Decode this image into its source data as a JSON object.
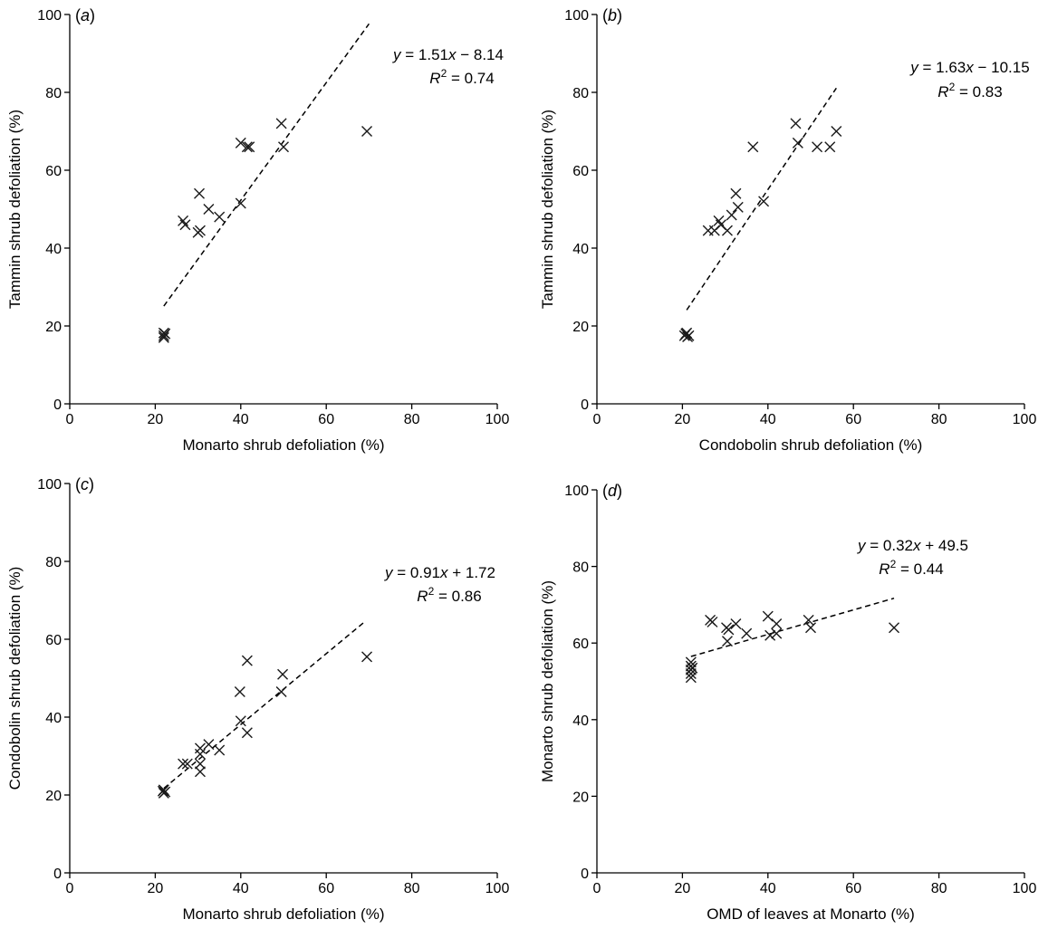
{
  "chart_data": [
    {
      "type": "scatter",
      "panel_label": "a",
      "xlabel": "Monarto shrub defoliation (%)",
      "ylabel": "Tammin shrub defoliation (%)",
      "xlim": [
        0,
        100
      ],
      "ylim": [
        0,
        100
      ],
      "xticks": [
        0,
        20,
        40,
        60,
        80,
        100
      ],
      "yticks": [
        0,
        20,
        40,
        60,
        80,
        100
      ],
      "equation": {
        "prefix": "y = 1.51",
        "var": "x",
        "rest": " − 8.14",
        "r2": "= 0.74"
      },
      "trendline": {
        "x": [
          22,
          70
        ],
        "y": [
          25.1,
          97.6
        ]
      },
      "points": [
        {
          "x": 22,
          "y": 17.5
        },
        {
          "x": 22,
          "y": 18.2
        },
        {
          "x": 22,
          "y": 17.0
        },
        {
          "x": 22.3,
          "y": 18.0
        },
        {
          "x": 26.5,
          "y": 47
        },
        {
          "x": 27,
          "y": 46
        },
        {
          "x": 30,
          "y": 44
        },
        {
          "x": 30.5,
          "y": 44.5
        },
        {
          "x": 30.3,
          "y": 54
        },
        {
          "x": 32.5,
          "y": 50
        },
        {
          "x": 35,
          "y": 48
        },
        {
          "x": 40,
          "y": 51.5
        },
        {
          "x": 40,
          "y": 67
        },
        {
          "x": 41.5,
          "y": 66
        },
        {
          "x": 42,
          "y": 66
        },
        {
          "x": 49.5,
          "y": 72
        },
        {
          "x": 50,
          "y": 66
        },
        {
          "x": 69.5,
          "y": 70
        }
      ]
    },
    {
      "type": "scatter",
      "panel_label": "b",
      "xlabel": "Condobolin shrub defoliation (%)",
      "ylabel": "Tammin shrub defoliation (%)",
      "xlim": [
        0,
        100
      ],
      "ylim": [
        0,
        100
      ],
      "xticks": [
        0,
        20,
        40,
        60,
        80,
        100
      ],
      "yticks": [
        0,
        20,
        40,
        60,
        80,
        100
      ],
      "equation": {
        "prefix": "y = 1.63",
        "var": "x",
        "rest": " − 10.15",
        "r2": "= 0.83"
      },
      "trendline": {
        "x": [
          21,
          56
        ],
        "y": [
          24.1,
          81.1
        ]
      },
      "points": [
        {
          "x": 20.5,
          "y": 17.5
        },
        {
          "x": 21,
          "y": 18.2
        },
        {
          "x": 21.5,
          "y": 17.5
        },
        {
          "x": 20.8,
          "y": 18
        },
        {
          "x": 21.2,
          "y": 17.2
        },
        {
          "x": 26,
          "y": 44.5
        },
        {
          "x": 27.5,
          "y": 44.5
        },
        {
          "x": 28.5,
          "y": 47
        },
        {
          "x": 29,
          "y": 46
        },
        {
          "x": 30.5,
          "y": 44.5
        },
        {
          "x": 31.5,
          "y": 48.5
        },
        {
          "x": 32.5,
          "y": 54
        },
        {
          "x": 33,
          "y": 50.5
        },
        {
          "x": 36.5,
          "y": 66
        },
        {
          "x": 39,
          "y": 52
        },
        {
          "x": 46.5,
          "y": 72
        },
        {
          "x": 47,
          "y": 67
        },
        {
          "x": 51.5,
          "y": 66
        },
        {
          "x": 54.5,
          "y": 66
        },
        {
          "x": 56,
          "y": 70
        }
      ]
    },
    {
      "type": "scatter",
      "panel_label": "c",
      "xlabel": "Monarto shrub defoliation (%)",
      "ylabel": "Condobolin shrub defoliation (%)",
      "xlim": [
        0,
        100
      ],
      "ylim": [
        0,
        100
      ],
      "xticks": [
        0,
        20,
        40,
        60,
        80,
        100
      ],
      "yticks": [
        0,
        20,
        40,
        60,
        80,
        100
      ],
      "equation": {
        "prefix": "y = 0.91",
        "var": "x",
        "rest": " + 1.72",
        "r2": "= 0.86"
      },
      "trendline": {
        "x": [
          22,
          69
        ],
        "y": [
          21.7,
          64.5
        ]
      },
      "points": [
        {
          "x": 22,
          "y": 20.5
        },
        {
          "x": 22,
          "y": 21.3
        },
        {
          "x": 22.3,
          "y": 20.8
        },
        {
          "x": 21.8,
          "y": 21
        },
        {
          "x": 26.5,
          "y": 28
        },
        {
          "x": 27.5,
          "y": 28
        },
        {
          "x": 30.5,
          "y": 26
        },
        {
          "x": 30.5,
          "y": 28
        },
        {
          "x": 30.5,
          "y": 30.5
        },
        {
          "x": 30.5,
          "y": 32
        },
        {
          "x": 32.5,
          "y": 33
        },
        {
          "x": 35,
          "y": 31.5
        },
        {
          "x": 40,
          "y": 39
        },
        {
          "x": 39.8,
          "y": 46.5
        },
        {
          "x": 41.5,
          "y": 36
        },
        {
          "x": 41.5,
          "y": 54.5
        },
        {
          "x": 49.5,
          "y": 46.5
        },
        {
          "x": 49.8,
          "y": 51
        },
        {
          "x": 69.5,
          "y": 55.5
        }
      ]
    },
    {
      "type": "scatter",
      "panel_label": "d",
      "xlabel": "OMD of leaves at Monarto (%)",
      "ylabel": "Monarto shrub defoliation (%)",
      "xlim": [
        0,
        100
      ],
      "ylim": [
        0,
        100
      ],
      "xticks": [
        0,
        20,
        40,
        60,
        80,
        100
      ],
      "yticks": [
        0,
        20,
        40,
        60,
        80,
        100
      ],
      "equation": {
        "prefix": "y = 0.32",
        "var": "x",
        "rest": " + 49.5",
        "r2": "= 0.44"
      },
      "trendline": {
        "x": [
          22,
          69.5
        ],
        "y": [
          56.5,
          71.7
        ]
      },
      "points": [
        {
          "x": 22,
          "y": 51
        },
        {
          "x": 22,
          "y": 52
        },
        {
          "x": 22,
          "y": 53
        },
        {
          "x": 22,
          "y": 54
        },
        {
          "x": 22,
          "y": 55
        },
        {
          "x": 22.3,
          "y": 53.5
        },
        {
          "x": 26.5,
          "y": 66
        },
        {
          "x": 27,
          "y": 65.5
        },
        {
          "x": 30.3,
          "y": 64
        },
        {
          "x": 30.8,
          "y": 63.5
        },
        {
          "x": 30.5,
          "y": 60.5
        },
        {
          "x": 32.5,
          "y": 65
        },
        {
          "x": 35,
          "y": 62.5
        },
        {
          "x": 40,
          "y": 67
        },
        {
          "x": 40.5,
          "y": 62
        },
        {
          "x": 42,
          "y": 65
        },
        {
          "x": 42,
          "y": 62.5
        },
        {
          "x": 49.5,
          "y": 66
        },
        {
          "x": 50,
          "y": 64
        },
        {
          "x": 69.5,
          "y": 64
        }
      ]
    }
  ]
}
